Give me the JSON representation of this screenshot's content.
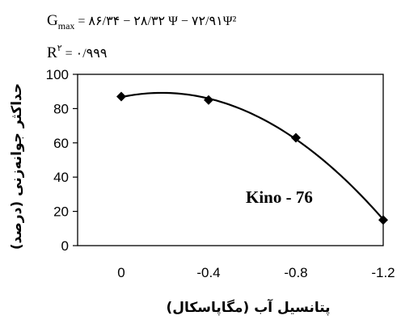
{
  "chart_data": {
    "type": "scatter",
    "title": "",
    "equation_label": "G",
    "equation_subscript": "max",
    "equation_rhs": " = ۸۶/۳۴ − ۲۸/۳۲ Ψ − ۷۲/۹۱Ψ²",
    "r2_label": "R",
    "r2_sup": "۲",
    "r2_value": " = ۰/۹۹۹",
    "xlabel": "پتانسیل آب (مگاپاسکال)",
    "ylabel": "حداکثر جوانه‌زنی (درصد)",
    "annotation": "Kino - 76",
    "x_ticks": [
      "0",
      "-0.4",
      "-0.8",
      "-1.2"
    ],
    "y_ticks": [
      "100",
      "80",
      "60",
      "40",
      "20",
      "0"
    ],
    "xlim": [
      0.2,
      -1.2
    ],
    "ylim": [
      0,
      100
    ],
    "grid": false,
    "series": [
      {
        "x": [
          0,
          -0.4,
          -0.8,
          -1.2
        ],
        "y": [
          87,
          85,
          63,
          15
        ],
        "marker": "diamond"
      }
    ],
    "trendline": {
      "type": "polynomial",
      "color": "#000000"
    }
  }
}
